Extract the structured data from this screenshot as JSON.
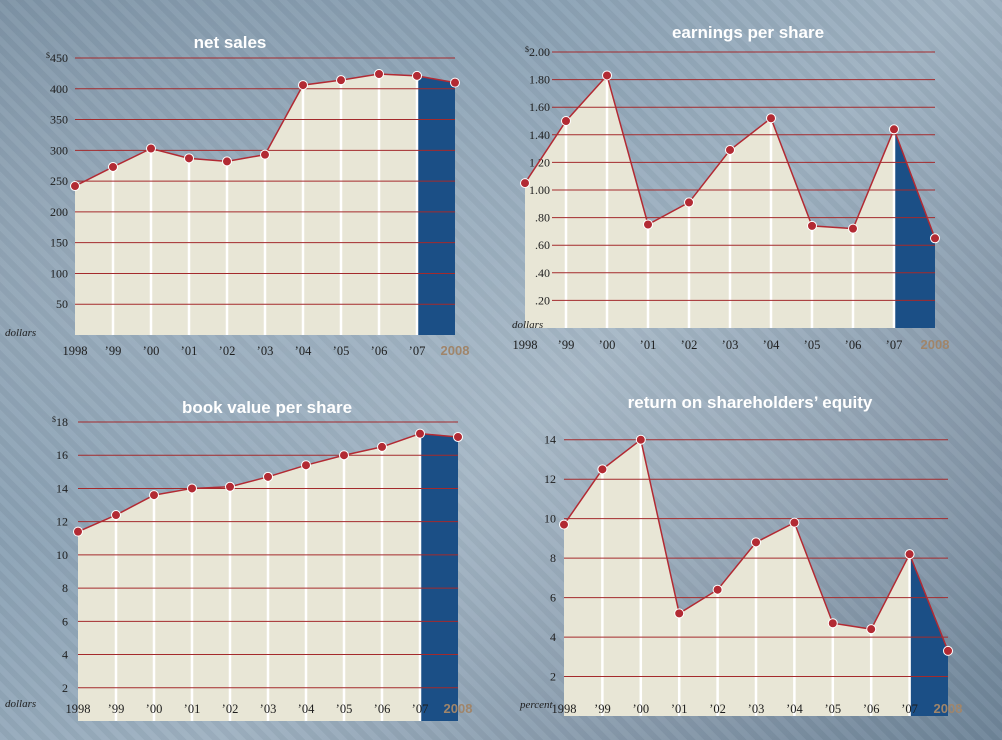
{
  "colors": {
    "area_fill": "#e8e6d6",
    "highlight_fill": "#1b4f86",
    "gridline": "#a42a2c",
    "marker": "#b22a33",
    "marker_stroke": "#ffffff",
    "title_text": "#ffffff",
    "last_year_label": "#a0856a"
  },
  "chart_data": [
    {
      "type": "area",
      "title": "net sales",
      "ylabel": "dollars",
      "currency_prefix": "$",
      "categories": [
        "1998",
        "’99",
        "’00",
        "’01",
        "’02",
        "’03",
        "’04",
        "’05",
        "’06",
        "’07",
        "2008"
      ],
      "values": [
        242,
        273,
        303,
        287,
        282,
        293,
        406,
        414,
        424,
        421,
        410
      ],
      "yticks": [
        "50",
        "100",
        "150",
        "200",
        "250",
        "300",
        "350",
        "400",
        "450"
      ],
      "ylim": [
        0,
        450
      ],
      "grid": true,
      "highlight_last_segment": true
    },
    {
      "type": "area",
      "title": "earnings per share",
      "ylabel": "dollars",
      "currency_prefix": "$",
      "categories": [
        "1998",
        "’99",
        "’00",
        "’01",
        "’02",
        "’03",
        "’04",
        "’05",
        "’06",
        "’07",
        "2008"
      ],
      "values": [
        1.05,
        1.5,
        1.83,
        0.75,
        0.91,
        1.29,
        1.52,
        0.74,
        0.72,
        1.44,
        0.65
      ],
      "yticks": [
        ".20",
        ".40",
        ".60",
        ".80",
        "1.00",
        "1.20",
        "1.40",
        "1.60",
        "1.80",
        "2.00"
      ],
      "ylim": [
        0,
        2.0
      ],
      "grid": true,
      "highlight_last_segment": true
    },
    {
      "type": "area",
      "title": "book value per share",
      "ylabel": "dollars",
      "currency_prefix": "$",
      "categories": [
        "1998",
        "’99",
        "’00",
        "’01",
        "’02",
        "’03",
        "’04",
        "’05",
        "’06",
        "’07",
        "2008"
      ],
      "values": [
        11.4,
        12.4,
        13.6,
        14.0,
        14.1,
        14.7,
        15.4,
        16.0,
        16.5,
        17.3,
        17.1
      ],
      "yticks": [
        "2",
        "4",
        "6",
        "8",
        "10",
        "12",
        "14",
        "16",
        "18"
      ],
      "ylim": [
        0,
        18
      ],
      "grid": true,
      "highlight_last_segment": true
    },
    {
      "type": "area",
      "title": "return on shareholders’ equity",
      "ylabel": "percent",
      "currency_prefix": "",
      "categories": [
        "1998",
        "’99",
        "’00",
        "’01",
        "’02",
        "’03",
        "’04",
        "’05",
        "’06",
        "’07",
        "2008"
      ],
      "values": [
        9.7,
        12.5,
        14.0,
        5.2,
        6.4,
        8.8,
        9.8,
        4.7,
        4.4,
        8.2,
        3.3
      ],
      "yticks": [
        "2",
        "4",
        "6",
        "8",
        "10",
        "12",
        "14"
      ],
      "ylim": [
        0,
        15
      ],
      "grid": true,
      "highlight_last_segment": true
    }
  ]
}
